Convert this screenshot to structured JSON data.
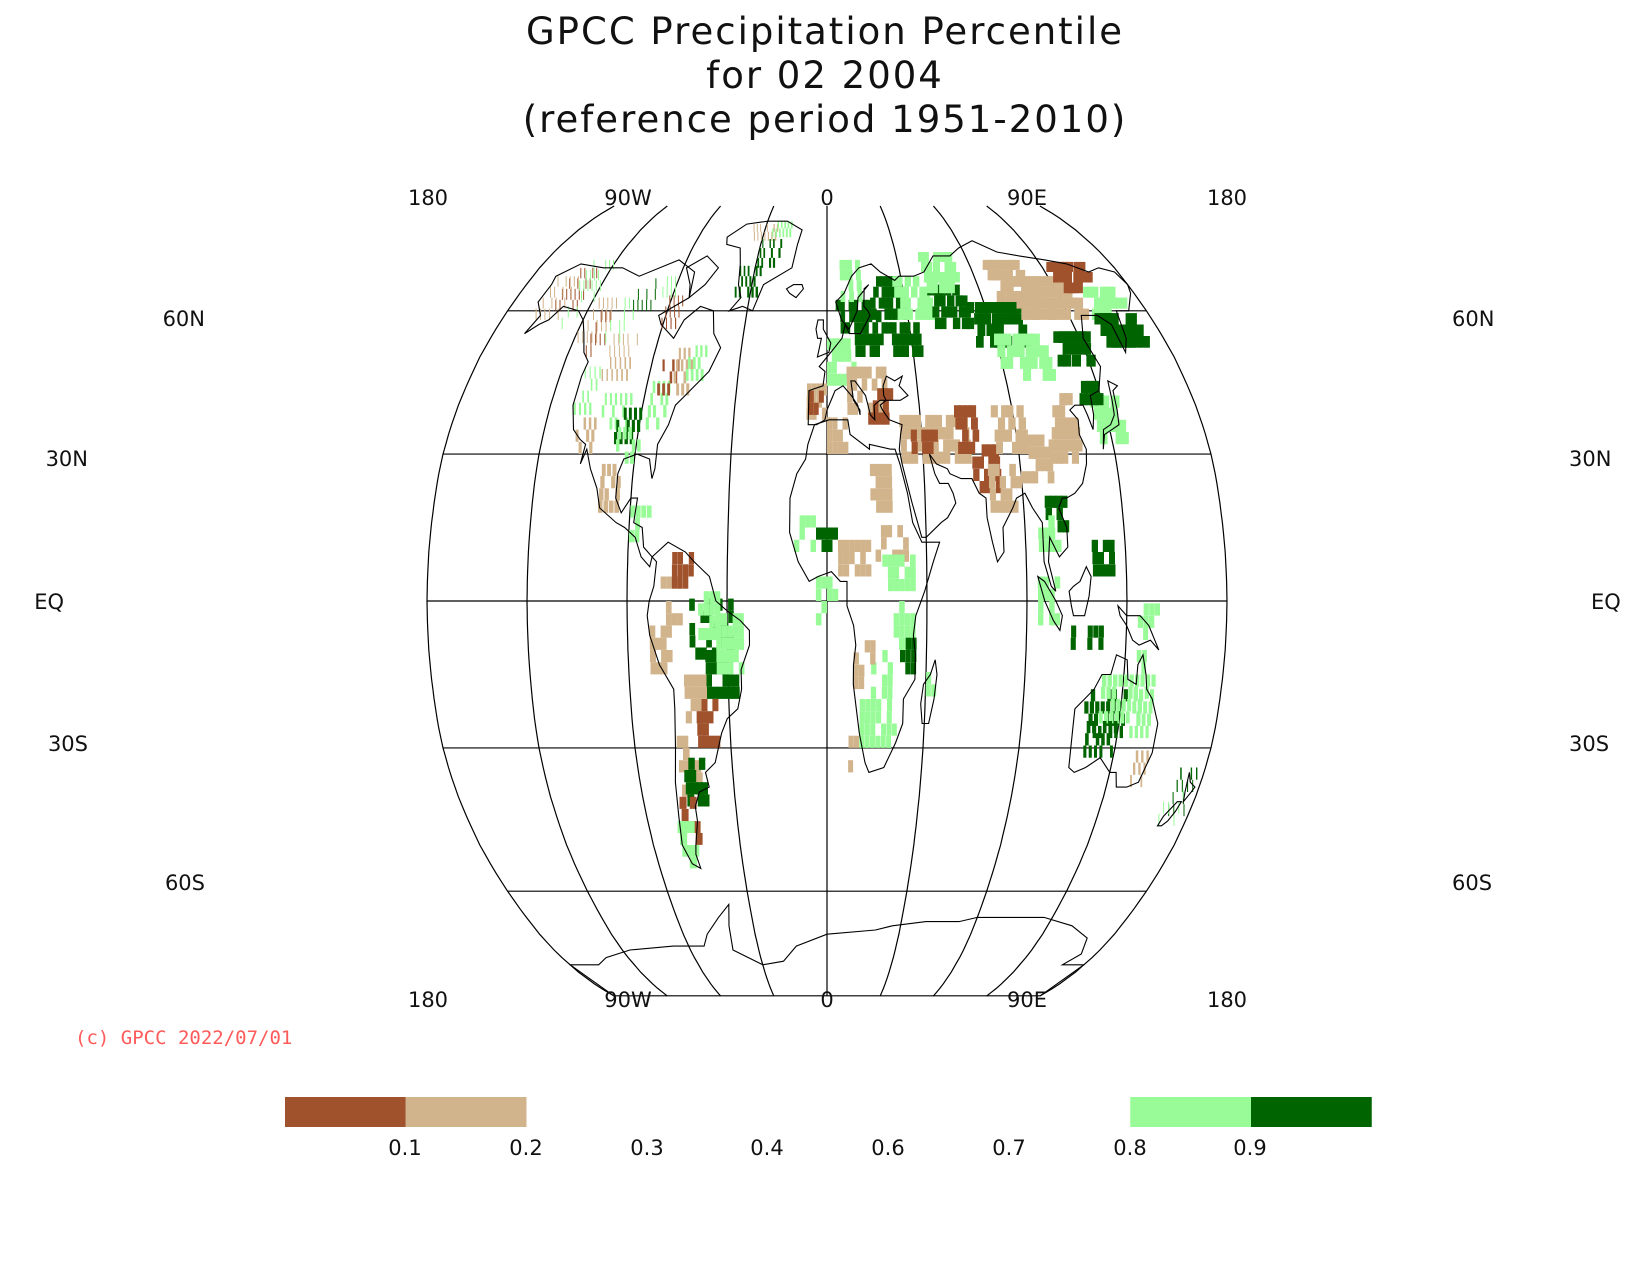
{
  "title": {
    "line1": "GPCC Precipitation Percentile",
    "line2": "for 02 2004",
    "line3": "(reference period 1951-2010)"
  },
  "map": {
    "projection": "Robinson",
    "central_longitude": 0,
    "lon_labels_top": [
      "180",
      "90W",
      "0",
      "90E",
      "180"
    ],
    "lon_labels_bottom": [
      "180",
      "90W",
      "0",
      "90E",
      "180"
    ],
    "lat_labels": [
      "60N",
      "30N",
      "EQ",
      "30S",
      "60S"
    ],
    "gridline_longitudes_deg": [
      -180,
      -135,
      -90,
      -45,
      0,
      45,
      90,
      135,
      180
    ],
    "gridline_latitudes_deg": [
      60,
      30,
      0,
      -30,
      -60
    ],
    "colors": {
      "below_0.1": "#a0522d",
      "0.1_0.2": "#d2b48c",
      "0.8_0.9": "#98fb98",
      "above_0.9": "#006400"
    }
  },
  "copyright": {
    "text": "(c) GPCC 2022/07/01",
    "color": "#ff5a5a"
  },
  "colorbar": {
    "tick_labels": [
      "0.1",
      "0.2",
      "0.3",
      "0.4",
      "0.6",
      "0.7",
      "0.8",
      "0.9"
    ],
    "bins": [
      {
        "range": "<0.1",
        "color": "#a0522d"
      },
      {
        "range": "0.1-0.2",
        "color": "#d2b48c"
      },
      {
        "range": "0.2-0.3",
        "color": "#ffffff"
      },
      {
        "range": "0.3-0.4",
        "color": "#ffffff"
      },
      {
        "range": "0.4-0.6",
        "color": "#ffffff"
      },
      {
        "range": "0.6-0.7",
        "color": "#ffffff"
      },
      {
        "range": "0.7-0.8",
        "color": "#ffffff"
      },
      {
        "range": "0.8-0.9",
        "color": "#98fb98"
      },
      {
        "range": ">0.9",
        "color": "#006400"
      }
    ]
  }
}
